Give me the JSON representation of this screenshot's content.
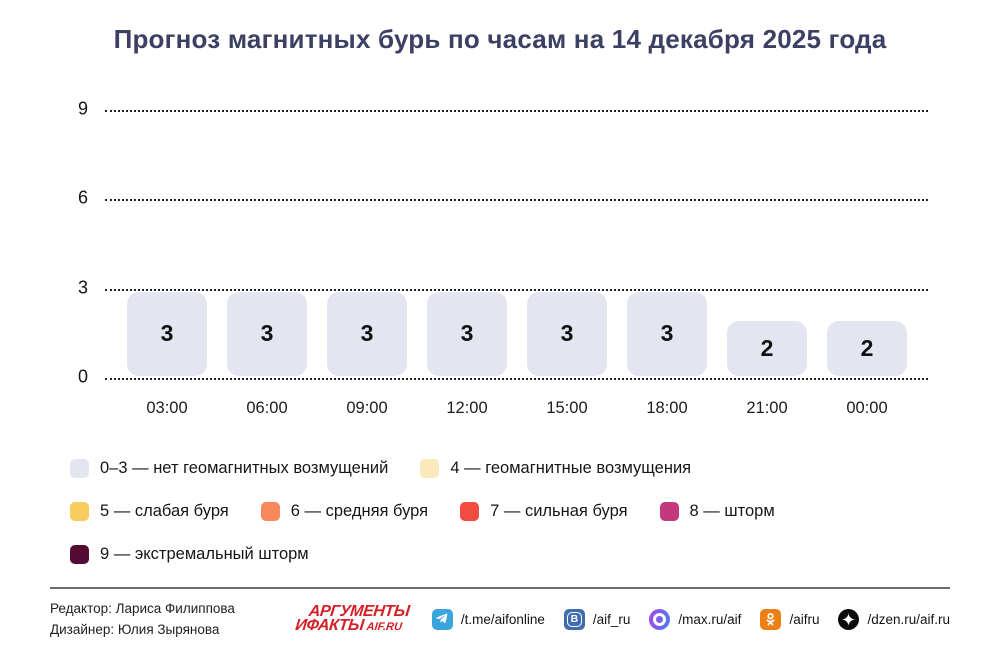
{
  "title": "Прогноз магнитных бурь по часам на 14 декабря 2025 года",
  "chart_data": {
    "type": "bar",
    "categories": [
      "03:00",
      "06:00",
      "09:00",
      "12:00",
      "15:00",
      "18:00",
      "21:00",
      "00:00"
    ],
    "values": [
      3,
      3,
      3,
      3,
      3,
      3,
      2,
      2
    ],
    "yticks": [
      0,
      3,
      6,
      9
    ],
    "ylim": [
      0,
      9
    ],
    "grid": "horizontal-dotted",
    "legend_position": "below",
    "bar_color": "#e3e5f1",
    "value_label_color": "#111111",
    "title": "Прогноз магнитных бурь по часам на 14 декабря 2025 года",
    "xlabel": "",
    "ylabel": ""
  },
  "legend": {
    "rows": [
      [
        {
          "color": "#e3e5f1",
          "label": "0–3 — нет геомагнитных возмущений"
        },
        {
          "color": "#fbe8bb",
          "label": "4 — геомагнитные возмущения"
        }
      ],
      [
        {
          "color": "#f7cd5f",
          "label": "5 — слабая буря"
        },
        {
          "color": "#f8885b",
          "label": "6 — средняя буря"
        },
        {
          "color": "#f14b42",
          "label": "7 — сильная буря"
        },
        {
          "color": "#c23a7d",
          "label": "8 — шторм"
        }
      ],
      [
        {
          "color": "#530b31",
          "label": "9 — экстремальный шторм"
        }
      ]
    ]
  },
  "footer": {
    "credits": [
      "Редактор: Лариса Филиппова",
      "Дизайнер: Юлия Зырянова"
    ],
    "logo": {
      "line1": "АРГУМЕНТЫ",
      "line2": "ИФАКТЫ",
      "suffix": "AIF.RU",
      "color": "#d32127"
    },
    "socials": [
      {
        "icon": "telegram-icon",
        "handle": "/t.me/aifonline",
        "color": "#3aa5dc"
      },
      {
        "icon": "vk-icon",
        "handle": "/aif_ru",
        "color": "#3f6daf"
      },
      {
        "icon": "max-icon",
        "handle": "/max.ru/aif",
        "color": "#7b52ec"
      },
      {
        "icon": "ok-icon",
        "handle": "/aifru",
        "color": "#ee7f17"
      },
      {
        "icon": "dzen-icon",
        "handle": "/dzen.ru/aif.ru",
        "color": "#0b0b0b"
      }
    ]
  }
}
